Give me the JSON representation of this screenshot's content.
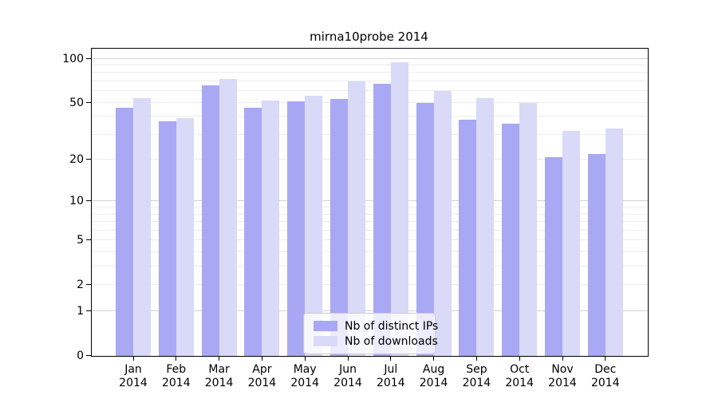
{
  "title": "mirna10probe 2014",
  "chart_data": {
    "type": "bar",
    "title": "mirna10probe 2014",
    "categories": [
      "Jan 2014",
      "Feb 2014",
      "Mar 2014",
      "Apr 2014",
      "May 2014",
      "Jun 2014",
      "Jul 2014",
      "Aug 2014",
      "Sep 2014",
      "Oct 2014",
      "Nov 2014",
      "Dec 2014"
    ],
    "series": [
      {
        "name": "Nb of distinct IPs",
        "color": "#a8a8f5",
        "values": [
          46,
          37,
          66,
          46,
          51,
          53,
          67,
          50,
          38,
          36,
          21,
          22
        ]
      },
      {
        "name": "Nb of downloads",
        "color": "#d9d9f8",
        "values": [
          54,
          39,
          73,
          52,
          56,
          70,
          94,
          60,
          54,
          50,
          32,
          33
        ]
      }
    ],
    "xlabel": "",
    "ylabel": "",
    "y_axis": {
      "scale": "log1p",
      "tick_values": [
        0,
        1,
        2,
        5,
        10,
        20,
        50,
        100
      ],
      "ylim": [
        0,
        118
      ],
      "major_gridlines": [
        1,
        10,
        100
      ],
      "minor_gridlines": [
        2,
        3,
        4,
        5,
        6,
        7,
        8,
        9,
        20,
        30,
        40,
        50,
        60,
        70,
        80,
        90
      ],
      "grid": "on"
    },
    "legend": {
      "position": "bottom-center"
    }
  },
  "colors": {
    "distinct_ips": "#a8a8f5",
    "downloads": "#d9d9f8",
    "axis": "#000000",
    "grid_major": "#d2d2d2",
    "grid_minor": "#ececec"
  }
}
